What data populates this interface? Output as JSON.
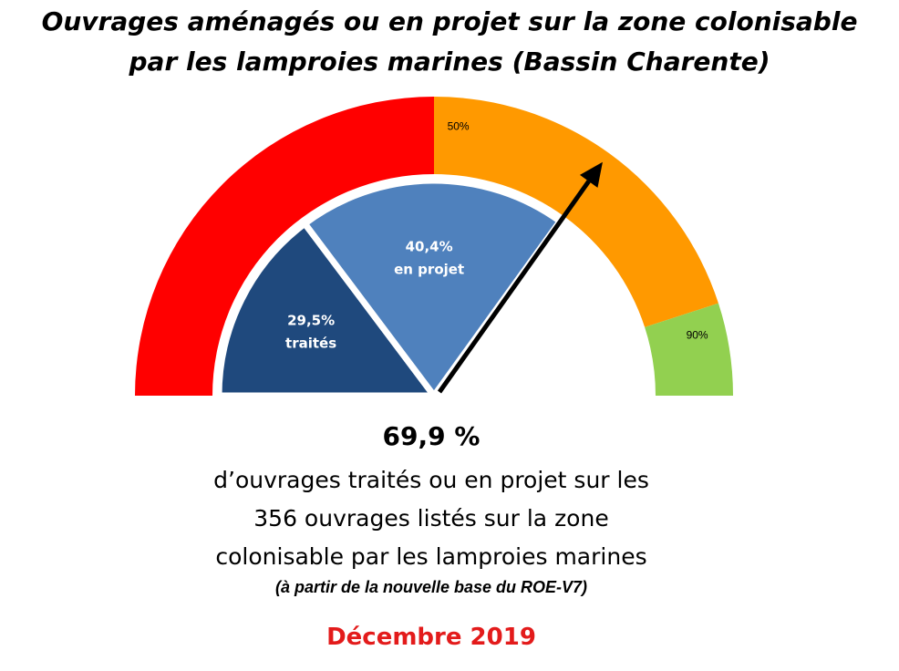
{
  "title": {
    "line1": "Ouvrages aménagés ou en projet sur la zone colonisable",
    "line2": "par les lamproies marines (Bassin Charente)"
  },
  "chart_data": {
    "type": "gauge",
    "scale_min": 0,
    "scale_max": 100,
    "bands": [
      {
        "from": 0,
        "to": 50,
        "color": "#ff0000",
        "label": ""
      },
      {
        "from": 50,
        "to": 90,
        "color": "#ff9900",
        "label": "50%"
      },
      {
        "from": 90,
        "to": 100,
        "color": "#92d050",
        "label": "90%"
      }
    ],
    "wedges": [
      {
        "label": "29,5%",
        "sublabel": "traités",
        "from": 0,
        "to": 29.5,
        "color": "#1f497d"
      },
      {
        "label": "40,4%",
        "sublabel": "en projet",
        "from": 29.5,
        "to": 69.9,
        "color": "#4f81bd"
      }
    ],
    "needle_value": 69.9
  },
  "summary": {
    "percent": "69,9 %",
    "line1": "d’ouvrages traités ou en projet sur les",
    "line2": "356 ouvrages listés sur la zone",
    "line3": "colonisable par les lamproies marines",
    "note": "(à partir de la nouvelle base du ROE-V7)"
  },
  "date": "Décembre 2019"
}
